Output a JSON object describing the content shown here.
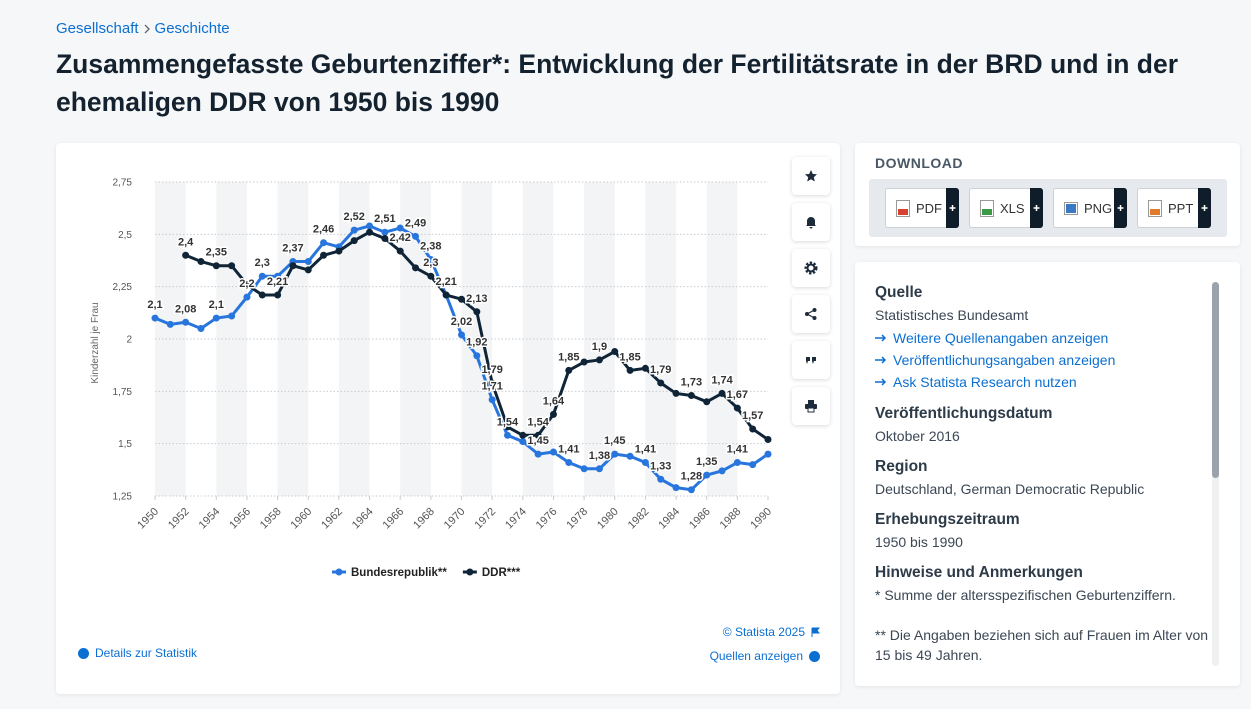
{
  "breadcrumb": [
    "Gesellschaft",
    "Geschichte"
  ],
  "title": "Zusammengefasste Geburtenziffer*: Entwicklung der Fertilitätsrate in der BRD und in der ehemaligen DDR von 1950 bis 1990",
  "chart_data": {
    "type": "line",
    "ylabel": "Kinderzahl je Frau",
    "x": [
      1950,
      1951,
      1952,
      1953,
      1954,
      1955,
      1956,
      1957,
      1958,
      1959,
      1960,
      1961,
      1962,
      1963,
      1964,
      1965,
      1966,
      1967,
      1968,
      1969,
      1970,
      1971,
      1972,
      1973,
      1974,
      1975,
      1976,
      1977,
      1978,
      1979,
      1980,
      1981,
      1982,
      1983,
      1984,
      1985,
      1986,
      1987,
      1988,
      1989,
      1990
    ],
    "xlim": [
      1950,
      1990
    ],
    "xticks": [
      1950,
      1952,
      1954,
      1956,
      1958,
      1960,
      1962,
      1964,
      1966,
      1968,
      1970,
      1972,
      1974,
      1976,
      1978,
      1980,
      1982,
      1984,
      1986,
      1988,
      1990
    ],
    "ylim": [
      1.25,
      2.75
    ],
    "yticks": [
      {
        "value": 1.25,
        "label": "1,25"
      },
      {
        "value": 1.5,
        "label": "1,5"
      },
      {
        "value": 1.75,
        "label": "1,75"
      },
      {
        "value": 2,
        "label": "2"
      },
      {
        "value": 2.25,
        "label": "2,25"
      },
      {
        "value": 2.5,
        "label": "2,5"
      },
      {
        "value": 2.75,
        "label": "2,75"
      }
    ],
    "grid": true,
    "series": [
      {
        "name": "Bundesrepublik**",
        "color": "#2876dd",
        "values": [
          2.1,
          2.07,
          2.08,
          2.05,
          2.1,
          2.11,
          2.2,
          2.3,
          2.3,
          2.37,
          2.37,
          2.46,
          2.44,
          2.52,
          2.54,
          2.51,
          2.53,
          2.49,
          2.38,
          2.21,
          2.02,
          1.92,
          1.71,
          1.54,
          1.51,
          1.45,
          1.46,
          1.41,
          1.38,
          1.38,
          1.45,
          1.44,
          1.41,
          1.33,
          1.29,
          1.28,
          1.35,
          1.37,
          1.41,
          1.4,
          1.45
        ],
        "value_labels": [
          "2,1",
          null,
          "2,08",
          null,
          "2,1",
          null,
          "2,2",
          "2,3",
          null,
          "2,37",
          null,
          "2,46",
          null,
          "2,52",
          null,
          "2,51",
          null,
          "2,49",
          "2,38",
          null,
          "2,02",
          "1,92",
          "1,71",
          "1,54",
          null,
          "1,45",
          null,
          "1,41",
          null,
          "1,38",
          "1,45",
          null,
          "1,41",
          "1,33",
          null,
          "1,28",
          "1,35",
          null,
          "1,41",
          null,
          null
        ]
      },
      {
        "name": "DDR***",
        "color": "#0f2537",
        "values": [
          null,
          null,
          2.4,
          2.37,
          2.35,
          2.35,
          2.26,
          2.21,
          2.21,
          2.35,
          2.33,
          2.4,
          2.42,
          2.47,
          2.51,
          2.48,
          2.42,
          2.34,
          2.3,
          2.21,
          2.19,
          2.13,
          1.79,
          1.58,
          1.54,
          1.54,
          1.64,
          1.85,
          1.89,
          1.9,
          1.94,
          1.85,
          1.86,
          1.79,
          1.74,
          1.73,
          1.7,
          1.74,
          1.67,
          1.57,
          1.52
        ],
        "value_labels": [
          null,
          null,
          "2,4",
          null,
          "2,35",
          null,
          null,
          null,
          "2,21",
          null,
          null,
          null,
          null,
          null,
          null,
          null,
          "2,42",
          null,
          "2,3",
          "2,21",
          null,
          "2,13",
          "1,79",
          null,
          null,
          "1,54",
          "1,64",
          "1,85",
          null,
          "1,9",
          null,
          "1,85",
          null,
          "1,79",
          null,
          "1,73",
          null,
          "1,74",
          "1,67",
          "1,57",
          null
        ]
      }
    ],
    "legend": "bottom"
  },
  "chart_footer": {
    "details": "Details zur Statistik",
    "copyright": "© Statista 2025",
    "sources": "Quellen anzeigen"
  },
  "download": {
    "heading": "DOWNLOAD",
    "buttons": [
      "PDF",
      "XLS",
      "PNG",
      "PPT"
    ]
  },
  "info": {
    "source": {
      "heading": "Quelle",
      "text": "Statistisches Bundesamt",
      "links": [
        "Weitere Quellenangaben anzeigen",
        "Veröffentlichungsangaben anzeigen",
        "Ask Statista Research nutzen"
      ]
    },
    "sections": [
      {
        "heading": "Veröffentlichungsdatum",
        "text": "Oktober 2016"
      },
      {
        "heading": "Region",
        "text": "Deutschland, German Democratic Republic"
      },
      {
        "heading": "Erhebungszeitraum",
        "text": "1950 bis 1990"
      }
    ],
    "notes": {
      "heading": "Hinweise und Anmerkungen",
      "lines": [
        "* Summe der altersspezifischen Geburtenziffern.",
        "** Die Angaben beziehen sich auf Frauen im Alter von 15 bis 49 Jahren."
      ]
    }
  }
}
